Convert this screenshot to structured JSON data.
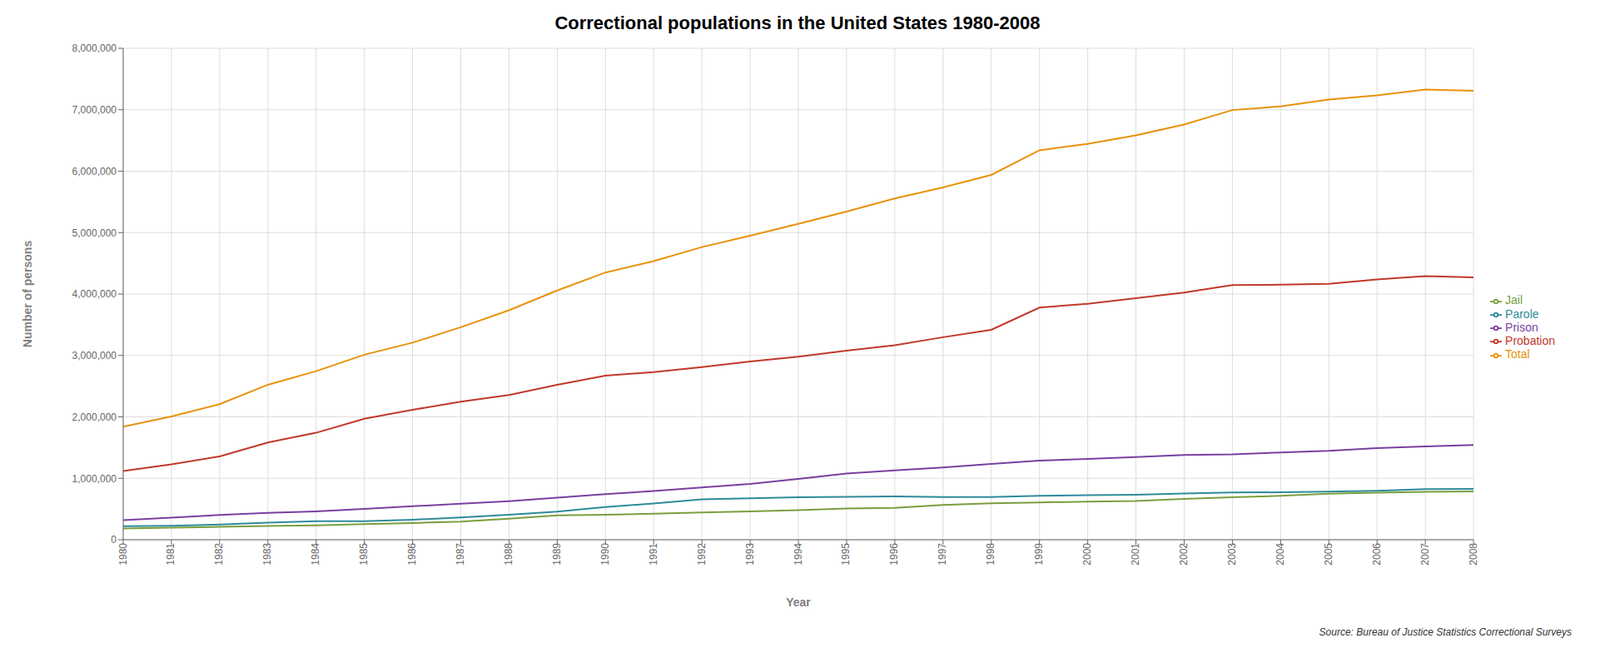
{
  "chart_data": {
    "type": "line",
    "title": "Correctional populations in the United States 1980-2008",
    "x_label": "Year",
    "y_label": "Number of persons",
    "annotations": [
      "Source: Bureau of Justice Statistics Correctional Surveys"
    ],
    "x": [
      1980,
      1981,
      1982,
      1983,
      1984,
      1985,
      1986,
      1987,
      1988,
      1989,
      1990,
      1991,
      1992,
      1993,
      1994,
      1995,
      1996,
      1997,
      1998,
      1999,
      2000,
      2001,
      2002,
      2003,
      2004,
      2005,
      2006,
      2007,
      2008
    ],
    "series": [
      {
        "name": "Probation",
        "color": "#C0392B",
        "values": [
          1118097,
          1225934,
          1357264,
          1582947,
          1740948,
          1968712,
          2114621,
          2247158,
          2356483,
          2522125,
          2670234,
          2728472,
          2811611,
          2903061,
          2981022,
          3077861,
          3164996,
          3296513,
          3417613,
          3779922,
          3839532,
          3931731,
          4024067,
          4144782,
          4151125,
          4166757,
          4236113,
          4293163,
          4270917
        ]
      },
      {
        "name": "Jail",
        "color": "#7B9E3E",
        "values": [
          182288,
          195085,
          209582,
          223551,
          234500,
          254986,
          272736,
          294092,
          343569,
          395553,
          405320,
          424129,
          444584,
          459804,
          479800,
          507044,
          518492,
          567079,
          592462,
          605943,
          621149,
          631240,
          665475,
          691301,
          713990,
          747529,
          765819,
          780174,
          785533
        ]
      },
      {
        "name": "Prison",
        "color": "#7B3FA0",
        "values": [
          319598,
          360029,
          402914,
          437620,
          462002,
          502507,
          544972,
          585084,
          627402,
          683367,
          743382,
          792535,
          849898,
          909381,
          990147,
          1078542,
          1127528,
          1176922,
          1232900,
          1287172,
          1316333,
          1345217,
          1380516,
          1390279,
          1421911,
          1448344,
          1492973,
          1517867,
          1540805
        ]
      },
      {
        "name": "Parole",
        "color": "#2E8B9A",
        "values": [
          220438,
          225539,
          247735,
          278976,
          300203,
          300502,
          325638,
          362192,
          407977,
          456803,
          531407,
          591440,
          658601,
          676100,
          690371,
          698459,
          704964,
          694787,
          696385,
          714457,
          723898,
          732333,
          750934,
          768993,
          771852,
          784408,
          798202,
          824365,
          828169
        ]
      },
      {
        "name": "Total",
        "color": "#E8920A",
        "values": [
          1840400,
          2006587,
          2207495,
          2523094,
          2743653,
          3011707,
          3207967,
          3459526,
          3735431,
          4057848,
          4350343,
          4535068,
          4764694,
          4948346,
          5141340,
          5342906,
          5555980,
          5735101,
          5938825,
          6340544,
          6445100,
          6581700,
          6758800,
          6995000,
          7054000,
          7166400,
          7233900,
          7328200,
          7308600
        ]
      }
    ],
    "xlim": [
      1980,
      2008
    ],
    "xticks": [
      1980,
      1981,
      1982,
      1983,
      1984,
      1985,
      1986,
      1987,
      1988,
      1989,
      1990,
      1991,
      1992,
      1993,
      1994,
      1995,
      1996,
      1997,
      1998,
      1999,
      2000,
      2001,
      2002,
      2003,
      2004,
      2005,
      2006,
      2007,
      2008
    ],
    "ylim": [
      0,
      8000000
    ],
    "yticks": [
      0,
      {
        "value": 1000000,
        "label": "1,000,000"
      },
      {
        "value": 2000000,
        "label": "2,000,000"
      },
      {
        "value": 3000000,
        "label": "3,000,000"
      },
      {
        "value": 4000000,
        "label": "4,000,000"
      },
      {
        "value": 5000000,
        "label": "5,000,000"
      },
      {
        "value": 6000000,
        "label": "6,000,000"
      },
      {
        "value": 7000000,
        "label": "7,000,000"
      },
      {
        "value": 8000000,
        "label": "8,000,000"
      }
    ],
    "grid": true,
    "legend": "right"
  }
}
